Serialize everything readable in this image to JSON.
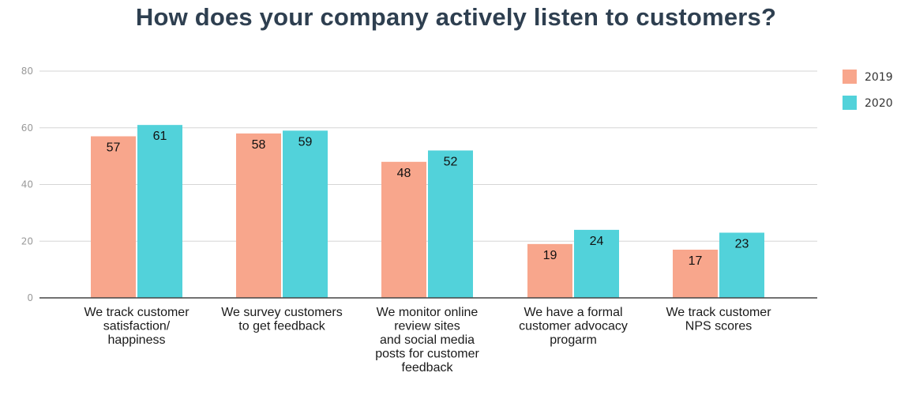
{
  "chart_data": {
    "type": "bar",
    "title": "How does your company actively listen to customers?",
    "xlabel": "",
    "ylabel": "",
    "ylim": [
      0,
      80
    ],
    "yticks": [
      0,
      20,
      40,
      60,
      80
    ],
    "grid": true,
    "legend_position": "top-right",
    "categories": [
      [
        "We track customer",
        "satisfaction/",
        "happiness"
      ],
      [
        "We survey customers",
        "to get feedback"
      ],
      [
        "We monitor online",
        "review sites",
        "and social media",
        "posts for customer",
        "feedback"
      ],
      [
        "We have a formal",
        "customer advocacy",
        "progarm"
      ],
      [
        "We track customer",
        "NPS scores"
      ]
    ],
    "series": [
      {
        "name": "2019",
        "color": "#f8a68c",
        "values": [
          57,
          58,
          48,
          19,
          17
        ]
      },
      {
        "name": "2020",
        "color": "#52d2da",
        "values": [
          61,
          59,
          52,
          24,
          23
        ]
      }
    ]
  }
}
